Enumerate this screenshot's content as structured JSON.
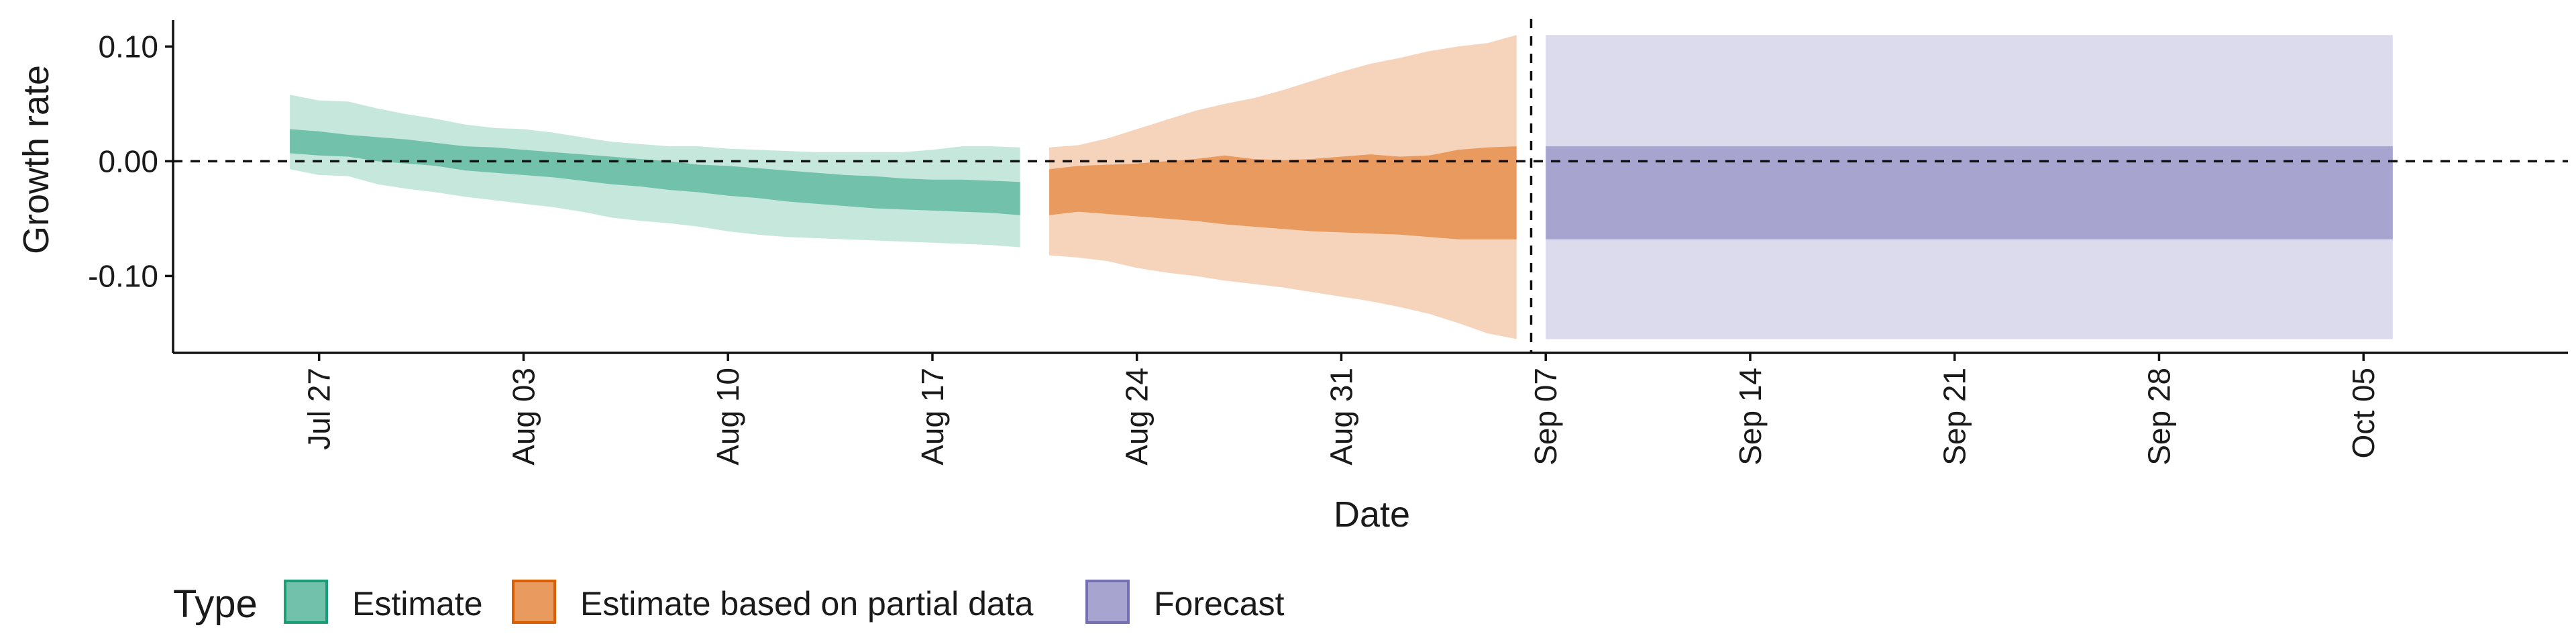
{
  "chart_data": {
    "type": "area",
    "title": "",
    "xlabel": "Date",
    "ylabel": "Growth rate",
    "x_tick_labels": [
      "Jul 27",
      "Aug 03",
      "Aug 10",
      "Aug 17",
      "Aug 24",
      "Aug 31",
      "Sep 07",
      "Sep 14",
      "Sep 21",
      "Sep 28",
      "Oct 05"
    ],
    "y_tick_labels": [
      "0.10",
      "0.00",
      "-0.10"
    ],
    "y_ticks": [
      0.1,
      0.0,
      -0.1
    ],
    "ylim": [
      -0.167,
      0.123
    ],
    "xlim": [
      "2020-07-22",
      "2020-10-12"
    ],
    "grid": false,
    "reference_lines": [
      {
        "axis": "y",
        "value": 0.0,
        "style": "dashed"
      },
      {
        "axis": "x",
        "value": "2020-09-06",
        "style": "dashed"
      }
    ],
    "legend": {
      "title": "Type",
      "position": "bottom-left",
      "entries": [
        {
          "label": "Estimate",
          "fill": "#72c1aa",
          "border": "#1b9e77"
        },
        {
          "label": "Estimate based on partial data",
          "fill": "#e89a5f",
          "border": "#d95f02"
        },
        {
          "label": "Forecast",
          "fill": "#a7a4cf",
          "border": "#7570b3"
        }
      ]
    },
    "series": [
      {
        "name": "Estimate",
        "colors": {
          "inner": "#72c1aa",
          "outer": "#c6e7dc"
        },
        "x": [
          "2020-07-26",
          "2020-07-27",
          "2020-07-28",
          "2020-07-29",
          "2020-07-30",
          "2020-07-31",
          "2020-08-01",
          "2020-08-02",
          "2020-08-03",
          "2020-08-04",
          "2020-08-05",
          "2020-08-06",
          "2020-08-07",
          "2020-08-08",
          "2020-08-09",
          "2020-08-10",
          "2020-08-11",
          "2020-08-12",
          "2020-08-13",
          "2020-08-14",
          "2020-08-15",
          "2020-08-16",
          "2020-08-17",
          "2020-08-18",
          "2020-08-19",
          "2020-08-20"
        ],
        "lower_90": [
          -0.007,
          -0.012,
          -0.013,
          -0.02,
          -0.024,
          -0.027,
          -0.031,
          -0.034,
          -0.037,
          -0.04,
          -0.044,
          -0.049,
          -0.052,
          -0.054,
          -0.057,
          -0.061,
          -0.064,
          -0.066,
          -0.067,
          -0.068,
          -0.069,
          -0.07,
          -0.071,
          -0.072,
          -0.073,
          -0.075
        ],
        "upper_90": [
          0.058,
          0.053,
          0.052,
          0.046,
          0.041,
          0.037,
          0.032,
          0.029,
          0.028,
          0.025,
          0.021,
          0.017,
          0.015,
          0.013,
          0.013,
          0.011,
          0.01,
          0.009,
          0.008,
          0.008,
          0.008,
          0.008,
          0.01,
          0.013,
          0.013,
          0.012
        ],
        "lower_50": [
          0.007,
          0.005,
          0.004,
          0.0,
          -0.002,
          -0.004,
          -0.008,
          -0.01,
          -0.012,
          -0.014,
          -0.017,
          -0.02,
          -0.022,
          -0.025,
          -0.027,
          -0.03,
          -0.032,
          -0.035,
          -0.037,
          -0.039,
          -0.041,
          -0.042,
          -0.043,
          -0.044,
          -0.045,
          -0.047
        ],
        "upper_50": [
          0.028,
          0.026,
          0.023,
          0.021,
          0.019,
          0.016,
          0.013,
          0.012,
          0.01,
          0.008,
          0.006,
          0.004,
          0.002,
          0.0,
          -0.003,
          -0.004,
          -0.006,
          -0.008,
          -0.01,
          -0.012,
          -0.013,
          -0.015,
          -0.016,
          -0.016,
          -0.017,
          -0.018
        ]
      },
      {
        "name": "Estimate based on partial data",
        "colors": {
          "inner": "#e89a5f",
          "outer": "#f6d4bc"
        },
        "x": [
          "2020-08-21",
          "2020-08-22",
          "2020-08-23",
          "2020-08-24",
          "2020-08-25",
          "2020-08-26",
          "2020-08-27",
          "2020-08-28",
          "2020-08-29",
          "2020-08-30",
          "2020-08-31",
          "2020-09-01",
          "2020-09-02",
          "2020-09-03",
          "2020-09-04",
          "2020-09-05",
          "2020-09-06"
        ],
        "lower_90": [
          -0.082,
          -0.084,
          -0.087,
          -0.093,
          -0.097,
          -0.1,
          -0.104,
          -0.107,
          -0.11,
          -0.114,
          -0.118,
          -0.122,
          -0.127,
          -0.133,
          -0.141,
          -0.15,
          -0.155
        ],
        "upper_90": [
          0.012,
          0.014,
          0.02,
          0.028,
          0.036,
          0.044,
          0.05,
          0.055,
          0.062,
          0.07,
          0.078,
          0.085,
          0.09,
          0.096,
          0.1,
          0.103,
          0.11
        ],
        "lower_50": [
          -0.047,
          -0.044,
          -0.046,
          -0.048,
          -0.05,
          -0.052,
          -0.055,
          -0.057,
          -0.059,
          -0.061,
          -0.062,
          -0.063,
          -0.064,
          -0.066,
          -0.068,
          -0.068,
          -0.068
        ],
        "upper_50": [
          -0.007,
          -0.004,
          -0.003,
          -0.002,
          0.0,
          0.002,
          0.005,
          0.002,
          0.001,
          0.002,
          0.004,
          0.006,
          0.004,
          0.005,
          0.01,
          0.012,
          0.013
        ]
      },
      {
        "name": "Forecast",
        "colors": {
          "inner": "#a7a4cf",
          "outer": "#dcdbee"
        },
        "x": [
          "2020-09-07",
          "2020-10-06"
        ],
        "lower_90": [
          -0.155,
          -0.155
        ],
        "upper_90": [
          0.11,
          0.11
        ],
        "lower_50": [
          -0.068,
          -0.068
        ],
        "upper_50": [
          0.013,
          0.013
        ]
      }
    ]
  }
}
